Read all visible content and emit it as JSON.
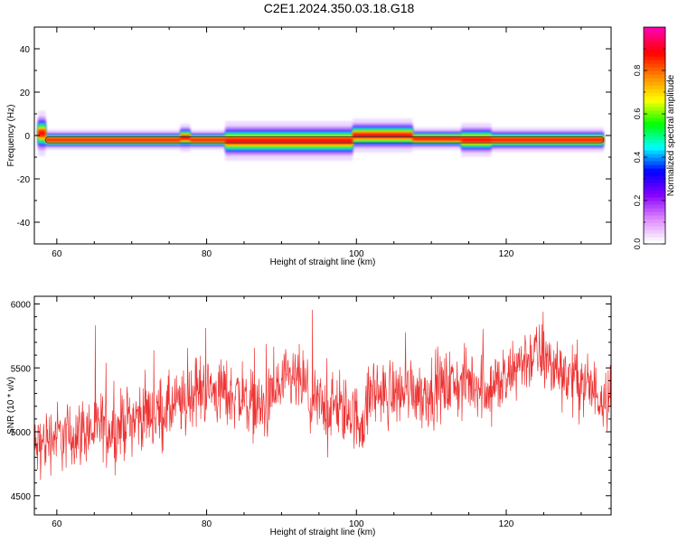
{
  "title": "C2E1.2024.350.03.18.G18",
  "colors": {
    "snr_line": "#ee3333",
    "frame": "#000000"
  },
  "chart_data": [
    {
      "type": "heatmap",
      "xlabel": "Height of straight line (km)",
      "ylabel": "Frequency (Hz)",
      "xlim": [
        57,
        134
      ],
      "ylim": [
        -50,
        50
      ],
      "x_ticks": [
        60,
        80,
        100,
        120
      ],
      "y_ticks": [
        -40,
        -20,
        0,
        20,
        40
      ],
      "x_tick_labels": [
        "60",
        "80",
        "100",
        "120"
      ],
      "y_tick_labels": [
        "-40",
        "-20",
        "0",
        "20",
        "40"
      ],
      "grid": false,
      "band": {
        "x_start": 57.5,
        "x_end": 133,
        "center_frequency_hz": -2,
        "segments": [
          {
            "x0": 57.5,
            "x1": 58.5,
            "center": 1,
            "halfwidth": 4
          },
          {
            "x0": 58.5,
            "x1": 76.5,
            "center": -2,
            "halfwidth": 1.8
          },
          {
            "x0": 76.5,
            "x1": 77.8,
            "center": -1,
            "halfwidth": 2.5
          },
          {
            "x0": 77.8,
            "x1": 82.5,
            "center": -2,
            "halfwidth": 1.8
          },
          {
            "x0": 82.5,
            "x1": 99.5,
            "center": -2.5,
            "halfwidth": 3.5
          },
          {
            "x0": 99.5,
            "x1": 107.5,
            "center": 0,
            "halfwidth": 3
          },
          {
            "x0": 107.5,
            "x1": 114,
            "center": -1.5,
            "halfwidth": 2
          },
          {
            "x0": 114,
            "x1": 118,
            "center": -2,
            "halfwidth": 3
          },
          {
            "x0": 118,
            "x1": 133,
            "center": -2,
            "halfwidth": 2.2
          }
        ]
      }
    },
    {
      "type": "colorbar",
      "label": "Normalized spectral amplitude",
      "range": [
        0,
        1
      ],
      "ticks": [
        0.0,
        0.2,
        0.4,
        0.6,
        0.8
      ],
      "tick_labels": [
        "0.0",
        "0.2",
        "0.4",
        "0.6",
        "0.8"
      ],
      "colormap": [
        "#ffffff",
        "#dd88ff",
        "#8800ff",
        "#0000ff",
        "#00ffff",
        "#00ff00",
        "#ffff00",
        "#ff8800",
        "#ff0000",
        "#ff00aa"
      ]
    },
    {
      "type": "line",
      "xlabel": "Height of straight line (km)",
      "ylabel": "SNR (10 * v/v)",
      "xlim": [
        57,
        134
      ],
      "ylim": [
        4350,
        6060
      ],
      "x_ticks": [
        60,
        80,
        100,
        120
      ],
      "y_ticks": [
        4500,
        5000,
        5500,
        6000
      ],
      "x_tick_labels": [
        "60",
        "80",
        "100",
        "120"
      ],
      "y_tick_labels": [
        "4500",
        "5000",
        "5500",
        "6000"
      ],
      "grid": false,
      "series": [
        {
          "x": [
            57,
            58,
            59,
            60,
            61,
            62,
            63,
            64,
            65,
            66,
            67,
            68,
            69,
            70,
            71,
            72,
            73,
            74,
            75,
            76,
            77,
            78,
            79,
            80,
            81,
            82,
            83,
            84,
            85,
            86,
            87,
            88,
            89,
            90,
            91,
            92,
            93,
            94,
            95,
            96,
            97,
            98,
            99,
            100,
            101,
            102,
            103,
            104,
            105,
            106,
            107,
            108,
            109,
            110,
            111,
            112,
            113,
            114,
            115,
            116,
            117,
            118,
            119,
            120,
            121,
            122,
            123,
            124,
            125,
            126,
            127,
            128,
            129,
            130,
            131,
            132,
            133,
            134
          ],
          "y": [
            4850,
            4900,
            4950,
            4980,
            4950,
            4970,
            5000,
            5020,
            5000,
            5050,
            5030,
            5000,
            5080,
            5100,
            5120,
            5150,
            5130,
            5160,
            5180,
            5200,
            5220,
            5300,
            5320,
            5350,
            5300,
            5330,
            5280,
            5300,
            5250,
            5230,
            5200,
            5180,
            5300,
            5350,
            5380,
            5400,
            5370,
            5200,
            5220,
            5180,
            5200,
            5150,
            5170,
            5100,
            5080,
            5350,
            5300,
            5280,
            5320,
            5300,
            5350,
            5330,
            5300,
            5320,
            5340,
            5360,
            5380,
            5350,
            5400,
            5380,
            5360,
            5350,
            5380,
            5360,
            5500,
            5550,
            5580,
            5600,
            5580,
            5520,
            5500,
            5450,
            5420,
            5400,
            5350,
            5300,
            5300,
            5320
          ],
          "noise_amplitude": 130
        }
      ]
    }
  ]
}
